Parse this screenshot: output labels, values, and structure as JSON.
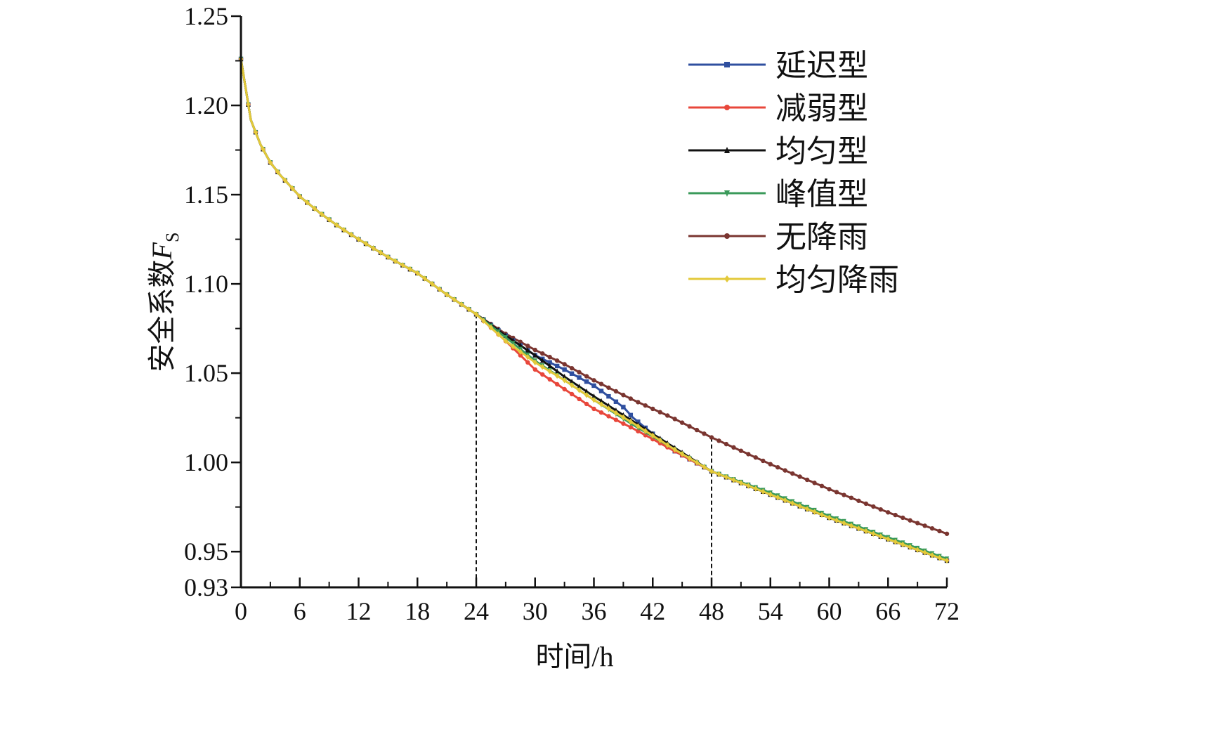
{
  "chart_data": {
    "type": "line",
    "title": "",
    "xlabel": "时间/h",
    "ylabel_main": "安全系数",
    "ylabel_var": "F",
    "ylabel_sub": "S",
    "xlim": [
      0,
      72
    ],
    "ylim": [
      0.93,
      1.25
    ],
    "xticks": [
      0,
      6,
      12,
      18,
      24,
      30,
      36,
      42,
      48,
      54,
      60,
      66,
      72
    ],
    "yticks": [
      0.93,
      0.95,
      1.0,
      1.05,
      1.1,
      1.15,
      1.2,
      1.25
    ],
    "ytick_labels": [
      "0.93",
      "0.95",
      "1.00",
      "1.05",
      "1.10",
      "1.15",
      "1.20",
      "1.25"
    ],
    "legend_position": "top-right",
    "annotations": [
      {
        "type": "vertical-dashed-line",
        "x": 24,
        "y_top": 1.083
      },
      {
        "type": "vertical-dashed-line",
        "x": 48,
        "y_top": 1.014
      }
    ],
    "series": [
      {
        "name": "延迟型",
        "color": "#2f4f9f",
        "marker": "square",
        "x": [
          0,
          1,
          2,
          3,
          4,
          5,
          6,
          8,
          10,
          12,
          15,
          18,
          21,
          24,
          27,
          30,
          33,
          36,
          39,
          40,
          44,
          48,
          54,
          60,
          66,
          72
        ],
        "y": [
          1.226,
          1.192,
          1.178,
          1.168,
          1.161,
          1.155,
          1.149,
          1.14,
          1.132,
          1.125,
          1.115,
          1.106,
          1.094,
          1.083,
          1.071,
          1.06,
          1.052,
          1.043,
          1.031,
          1.025,
          1.007,
          0.995,
          0.982,
          0.969,
          0.957,
          0.945
        ]
      },
      {
        "name": "减弱型",
        "color": "#e8473b",
        "marker": "circle",
        "x": [
          0,
          1,
          2,
          3,
          4,
          5,
          6,
          8,
          10,
          12,
          15,
          18,
          21,
          24,
          27,
          30,
          33,
          36,
          40,
          44,
          48,
          54,
          60,
          66,
          72
        ],
        "y": [
          1.226,
          1.192,
          1.178,
          1.168,
          1.161,
          1.155,
          1.149,
          1.14,
          1.132,
          1.125,
          1.115,
          1.106,
          1.094,
          1.083,
          1.068,
          1.052,
          1.041,
          1.03,
          1.019,
          1.007,
          0.995,
          0.982,
          0.969,
          0.957,
          0.945
        ]
      },
      {
        "name": "均匀型",
        "color": "#111111",
        "marker": "triangle-up",
        "x": [
          0,
          1,
          2,
          3,
          4,
          5,
          6,
          8,
          10,
          12,
          15,
          18,
          21,
          24,
          27,
          30,
          33,
          36,
          40,
          44,
          48,
          54,
          60,
          66,
          72
        ],
        "y": [
          1.226,
          1.192,
          1.178,
          1.168,
          1.161,
          1.155,
          1.149,
          1.14,
          1.132,
          1.125,
          1.115,
          1.106,
          1.094,
          1.083,
          1.071,
          1.06,
          1.048,
          1.037,
          1.023,
          1.009,
          0.995,
          0.982,
          0.969,
          0.957,
          0.945
        ]
      },
      {
        "name": "峰值型",
        "color": "#3a9a5a",
        "marker": "triangle-down",
        "x": [
          0,
          1,
          2,
          3,
          4,
          5,
          6,
          8,
          10,
          12,
          15,
          18,
          21,
          24,
          27,
          30,
          33,
          36,
          40,
          44,
          48,
          54,
          60,
          66,
          72
        ],
        "y": [
          1.226,
          1.192,
          1.178,
          1.168,
          1.161,
          1.155,
          1.149,
          1.14,
          1.132,
          1.125,
          1.115,
          1.106,
          1.094,
          1.083,
          1.07,
          1.057,
          1.046,
          1.035,
          1.021,
          1.008,
          0.995,
          0.983,
          0.97,
          0.958,
          0.946
        ]
      },
      {
        "name": "无降雨",
        "color": "#7a3530",
        "marker": "circle",
        "x": [
          0,
          1,
          2,
          3,
          4,
          5,
          6,
          8,
          10,
          12,
          15,
          18,
          21,
          24,
          27,
          30,
          33,
          36,
          40,
          44,
          48,
          54,
          60,
          66,
          72
        ],
        "y": [
          1.226,
          1.192,
          1.178,
          1.168,
          1.161,
          1.155,
          1.149,
          1.14,
          1.132,
          1.125,
          1.115,
          1.106,
          1.094,
          1.083,
          1.072,
          1.063,
          1.055,
          1.046,
          1.035,
          1.025,
          1.014,
          0.999,
          0.985,
          0.972,
          0.96
        ]
      },
      {
        "name": "均匀降雨",
        "color": "#e3c93a",
        "marker": "star",
        "x": [
          0,
          1,
          2,
          3,
          4,
          5,
          6,
          8,
          10,
          12,
          15,
          18,
          21,
          24,
          27,
          30,
          33,
          36,
          40,
          44,
          48,
          54,
          60,
          66,
          72
        ],
        "y": [
          1.226,
          1.192,
          1.178,
          1.168,
          1.161,
          1.155,
          1.149,
          1.14,
          1.132,
          1.125,
          1.115,
          1.106,
          1.094,
          1.083,
          1.068,
          1.056,
          1.046,
          1.035,
          1.022,
          1.008,
          0.995,
          0.982,
          0.969,
          0.957,
          0.945
        ]
      }
    ]
  }
}
